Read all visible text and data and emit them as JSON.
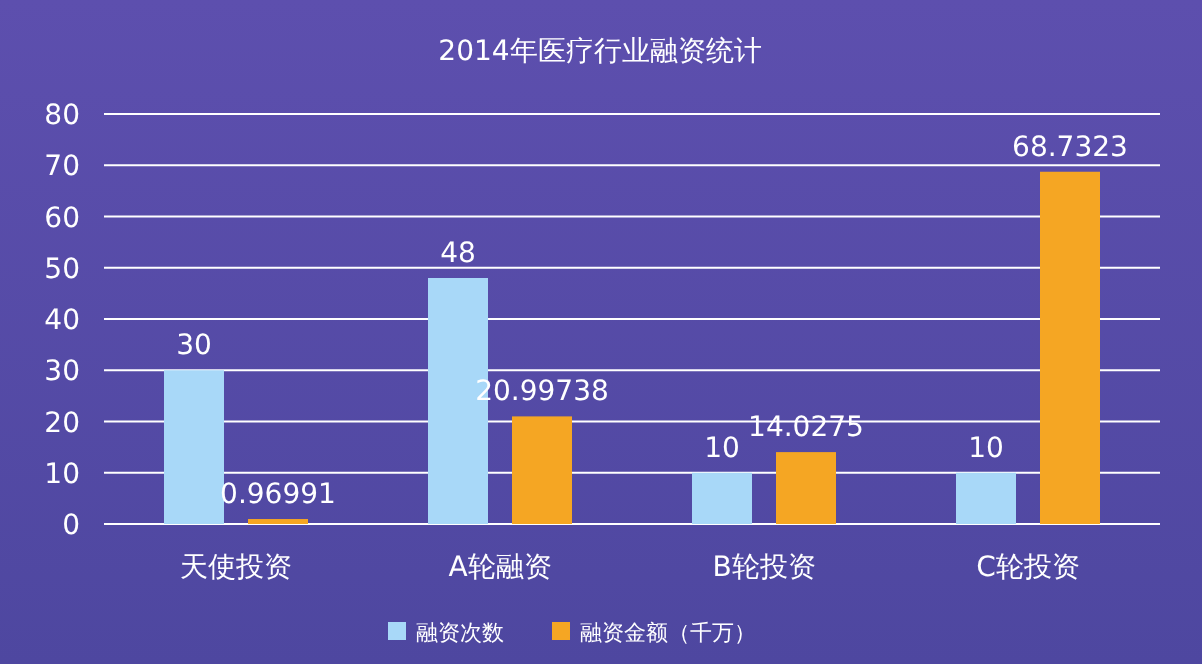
{
  "chart_data": {
    "type": "bar",
    "title": "2014年医疗行业融资统计",
    "categories": [
      "天使投资",
      "A轮融资",
      "B轮投资",
      "C轮投资"
    ],
    "series": [
      {
        "name": "融资次数",
        "color": "#a8d8f8",
        "values": [
          30,
          48,
          10,
          10
        ]
      },
      {
        "name": "融资金额（千万）",
        "color": "#f5a623",
        "values": [
          0.96991,
          20.99738,
          14.0275,
          68.7323
        ]
      }
    ],
    "ylim": [
      0,
      80
    ],
    "yticks": [
      0,
      10,
      20,
      30,
      40,
      50,
      60,
      70,
      80
    ],
    "grid": "y",
    "legend": "bottom",
    "data_labels": true
  }
}
